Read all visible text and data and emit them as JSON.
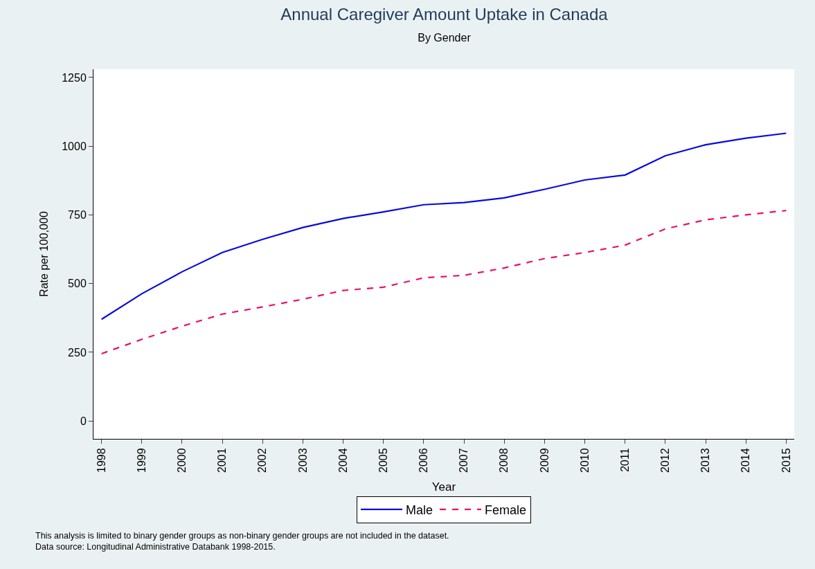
{
  "chart_data": {
    "type": "line",
    "title": "Annual Caregiver Amount Uptake in Canada",
    "subtitle": "By Gender",
    "xlabel": "Year",
    "ylabel": "Rate per 100,000",
    "x": [
      1998,
      1999,
      2000,
      2001,
      2002,
      2003,
      2004,
      2005,
      2006,
      2007,
      2008,
      2009,
      2010,
      2011,
      2012,
      2013,
      2014,
      2015
    ],
    "series": [
      {
        "name": "Male",
        "color": "#0a0ae0",
        "line_style": "solid",
        "values": [
          370,
          463,
          543,
          613,
          661,
          704,
          737,
          761,
          787,
          795,
          812,
          843,
          877,
          895,
          965,
          1005,
          1029,
          1047
        ]
      },
      {
        "name": "Female",
        "color": "#e8106e",
        "line_style": "dashed",
        "values": [
          245,
          297,
          345,
          389,
          415,
          443,
          475,
          487,
          521,
          530,
          557,
          591,
          613,
          640,
          699,
          732,
          750,
          766
        ]
      }
    ],
    "xlim": [
      1997.8,
      2015.2
    ],
    "xticks": [
      1998,
      1999,
      2000,
      2001,
      2002,
      2003,
      2004,
      2005,
      2006,
      2007,
      2008,
      2009,
      2010,
      2011,
      2012,
      2013,
      2014,
      2015
    ],
    "ylim": [
      -65,
      1280
    ],
    "yticks": [
      0,
      250,
      500,
      750,
      1000,
      1250
    ],
    "legend": "bottom",
    "marker": "none",
    "annotations": [
      "This analysis is limited to binary gender groups as non-binary gender groups are not included in the dataset.",
      "Data source: Longitudinal Administrative Databank 1998-2015."
    ]
  }
}
